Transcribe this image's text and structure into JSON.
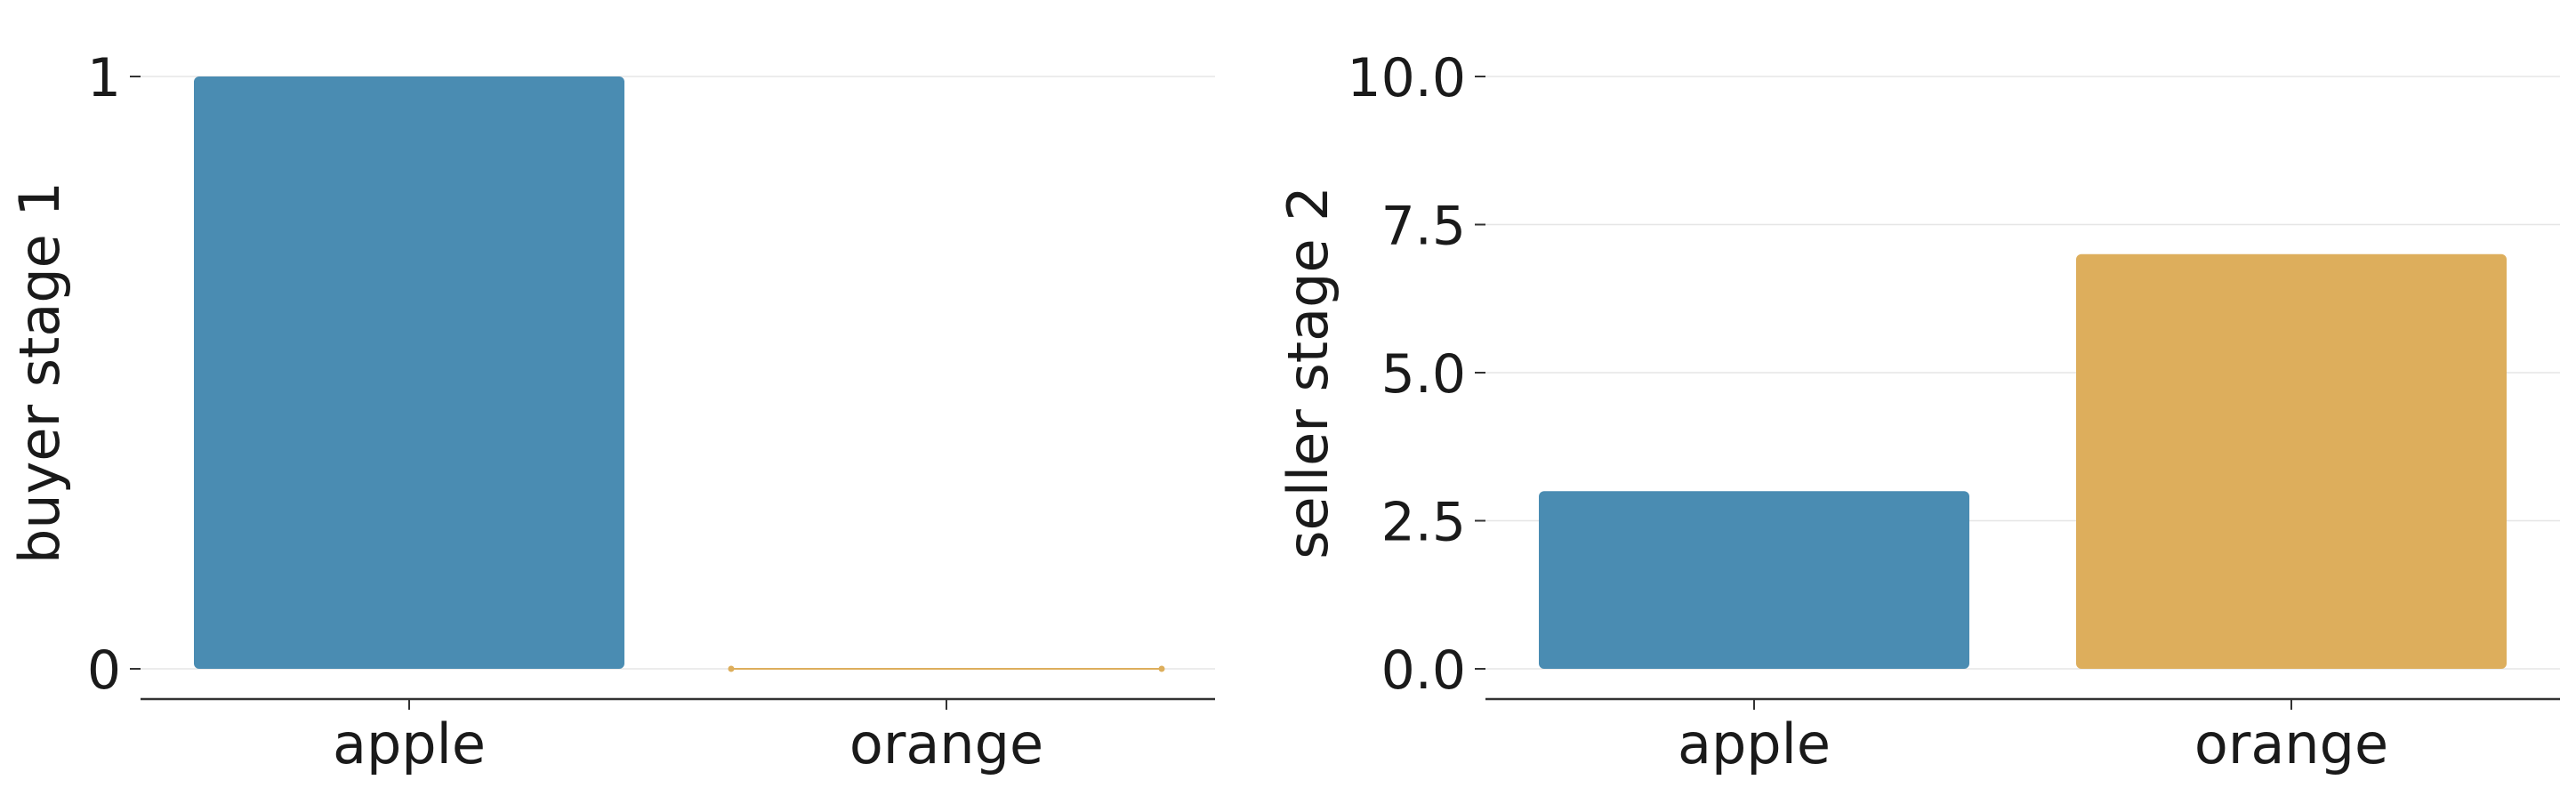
{
  "chart_data": [
    {
      "type": "bar",
      "categories": [
        "apple",
        "orange"
      ],
      "values": [
        1,
        0
      ],
      "ylabel": "buyer stage 1",
      "xlabel": "",
      "ylim": [
        0,
        1
      ],
      "yticks": [
        0,
        1
      ],
      "ytick_labels": [
        "0",
        "1"
      ],
      "colors": [
        "#4a8cb2",
        "#ddae5c"
      ],
      "grid": "horizontal"
    },
    {
      "type": "bar",
      "categories": [
        "apple",
        "orange"
      ],
      "values": [
        3,
        7
      ],
      "ylabel": "seller stage 2",
      "xlabel": "",
      "ylim": [
        0,
        10
      ],
      "yticks": [
        0,
        2.5,
        5,
        7.5,
        10
      ],
      "ytick_labels": [
        "0.0",
        "2.5",
        "5.0",
        "7.5",
        "10.0"
      ],
      "colors": [
        "#4a8cb2",
        "#ddae5c"
      ],
      "grid": "horizontal"
    }
  ]
}
